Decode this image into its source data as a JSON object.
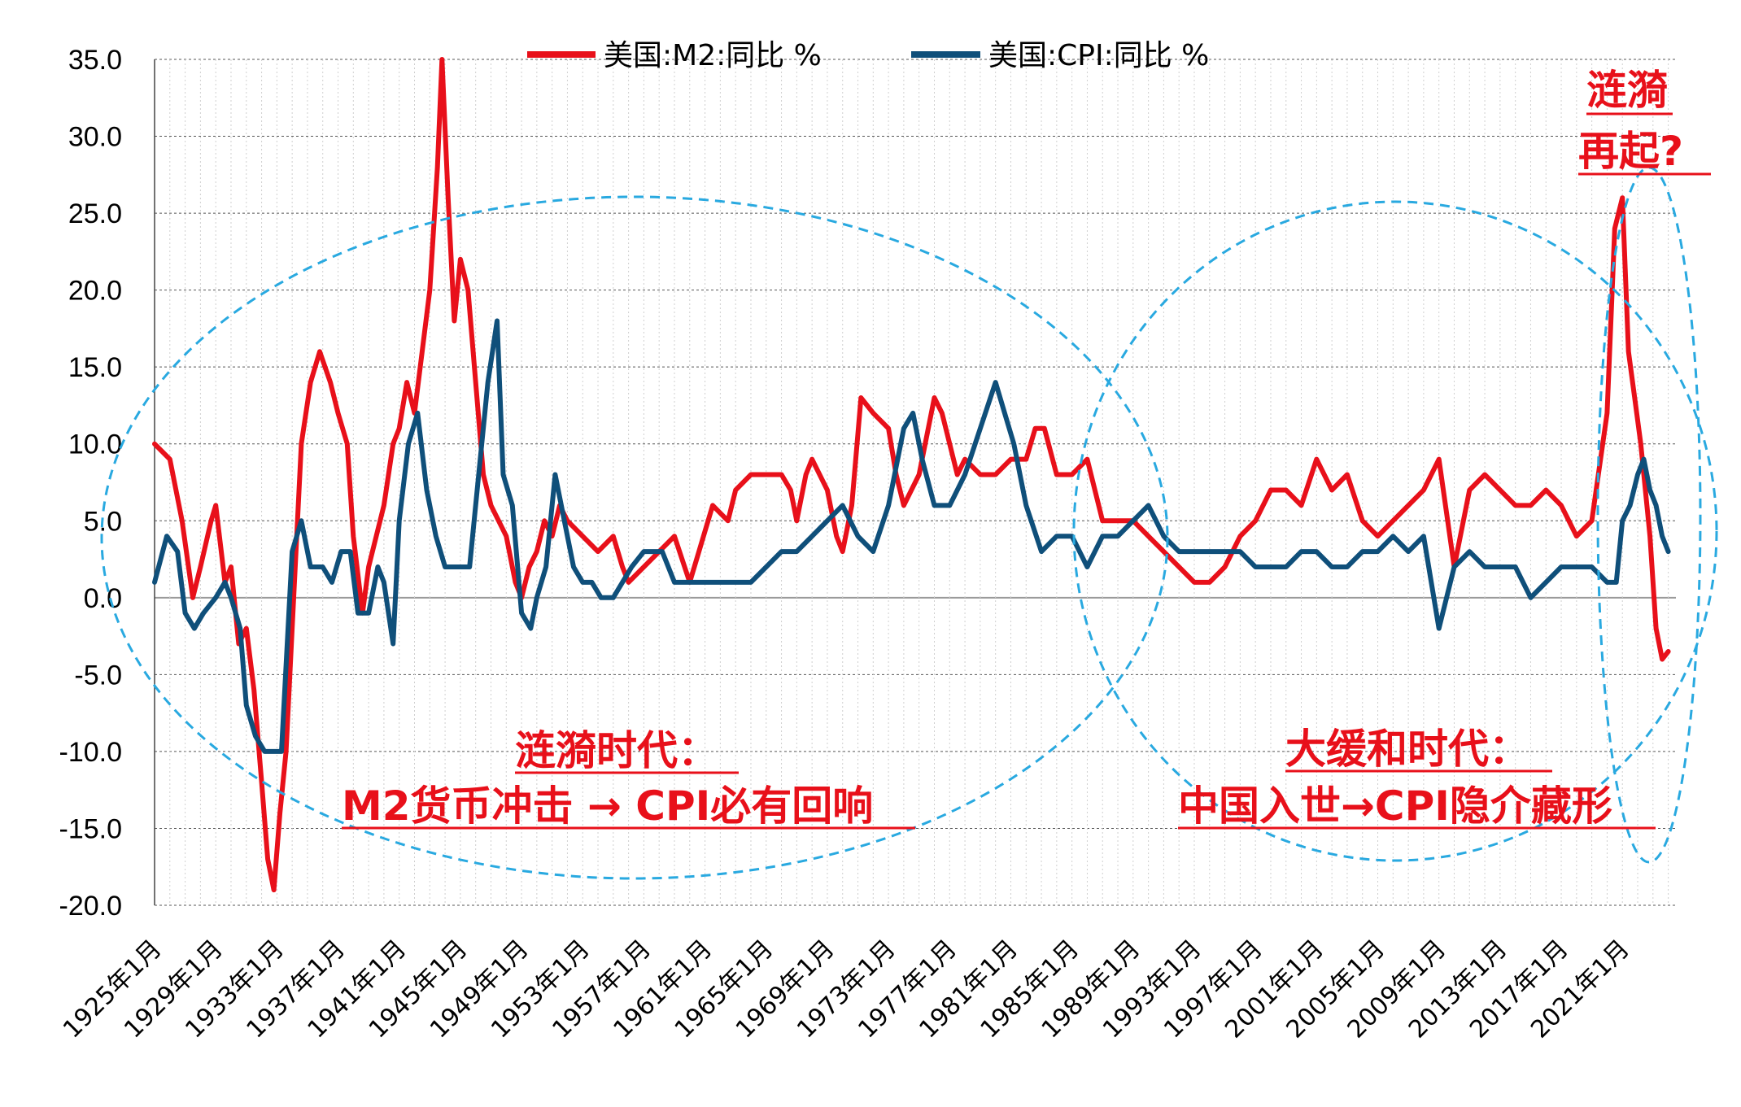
{
  "chart_data": {
    "type": "line",
    "title": "",
    "xlabel": "",
    "ylabel": "",
    "ylim": [
      -20,
      35
    ],
    "yticks": [
      "35.0",
      "30.0",
      "25.0",
      "20.0",
      "15.0",
      "10.0",
      "5.0",
      "0.0",
      "-5.0",
      "-10.0",
      "-15.0",
      "-20.0"
    ],
    "x_range": [
      1925,
      2024.5
    ],
    "xtick_labels": [
      "1925年1月",
      "1929年1月",
      "1933年1月",
      "1937年1月",
      "1941年1月",
      "1945年1月",
      "1949年1月",
      "1953年1月",
      "1957年1月",
      "1961年1月",
      "1965年1月",
      "1969年1月",
      "1973年1月",
      "1977年1月",
      "1981年1月",
      "1985年1月",
      "1989年1月",
      "1993年1月",
      "1997年1月",
      "2001年1月",
      "2005年1月",
      "2009年1月",
      "2013年1月",
      "2017年1月",
      "2021年1月"
    ],
    "grid": "vertical-dotted-and-horizontal-dotted",
    "legend_position": "top",
    "series": [
      {
        "name": "美国:M2:同比 %",
        "color": "#e8101a",
        "points": [
          [
            1925.0,
            10
          ],
          [
            1926.0,
            9
          ],
          [
            1926.8,
            5
          ],
          [
            1927.5,
            0
          ],
          [
            1928.0,
            2
          ],
          [
            1928.7,
            5
          ],
          [
            1929.0,
            6
          ],
          [
            1929.6,
            1
          ],
          [
            1930.0,
            2
          ],
          [
            1930.5,
            -3
          ],
          [
            1931.0,
            -2
          ],
          [
            1931.5,
            -6
          ],
          [
            1932.0,
            -12
          ],
          [
            1932.4,
            -17
          ],
          [
            1932.8,
            -19
          ],
          [
            1933.2,
            -14
          ],
          [
            1933.6,
            -10
          ],
          [
            1934.0,
            -2
          ],
          [
            1934.6,
            10
          ],
          [
            1935.2,
            14
          ],
          [
            1935.8,
            16
          ],
          [
            1936.5,
            14
          ],
          [
            1937.0,
            12
          ],
          [
            1937.6,
            10
          ],
          [
            1938.0,
            4
          ],
          [
            1938.6,
            -1
          ],
          [
            1939.0,
            2
          ],
          [
            1939.5,
            4
          ],
          [
            1940.0,
            6
          ],
          [
            1940.6,
            10
          ],
          [
            1941.0,
            11
          ],
          [
            1941.5,
            14
          ],
          [
            1942.0,
            12
          ],
          [
            1942.5,
            16
          ],
          [
            1943.0,
            20
          ],
          [
            1943.5,
            28
          ],
          [
            1943.8,
            35
          ],
          [
            1944.2,
            26
          ],
          [
            1944.6,
            18
          ],
          [
            1945.0,
            22
          ],
          [
            1945.5,
            20
          ],
          [
            1946.0,
            14
          ],
          [
            1946.5,
            8
          ],
          [
            1947.0,
            6
          ],
          [
            1948.0,
            4
          ],
          [
            1948.6,
            1
          ],
          [
            1949.0,
            0
          ],
          [
            1949.5,
            2
          ],
          [
            1950.0,
            3
          ],
          [
            1950.5,
            5
          ],
          [
            1951.0,
            4
          ],
          [
            1951.5,
            6
          ],
          [
            1952.0,
            5
          ],
          [
            1953.0,
            4
          ],
          [
            1954.0,
            3
          ],
          [
            1955.0,
            4
          ],
          [
            1955.6,
            2
          ],
          [
            1956.0,
            1
          ],
          [
            1957.0,
            2
          ],
          [
            1958.0,
            3
          ],
          [
            1959.0,
            4
          ],
          [
            1960.0,
            1
          ],
          [
            1960.6,
            3
          ],
          [
            1961.5,
            6
          ],
          [
            1962.5,
            5
          ],
          [
            1963.0,
            7
          ],
          [
            1964.0,
            8
          ],
          [
            1965.0,
            8
          ],
          [
            1966.0,
            8
          ],
          [
            1966.6,
            7
          ],
          [
            1967.0,
            5
          ],
          [
            1967.6,
            8
          ],
          [
            1968.0,
            9
          ],
          [
            1969.0,
            7
          ],
          [
            1969.6,
            4
          ],
          [
            1970.0,
            3
          ],
          [
            1970.6,
            6
          ],
          [
            1971.2,
            13
          ],
          [
            1972.0,
            12
          ],
          [
            1973.0,
            11
          ],
          [
            1973.5,
            8
          ],
          [
            1974.0,
            6
          ],
          [
            1975.0,
            8
          ],
          [
            1976.0,
            13
          ],
          [
            1976.5,
            12
          ],
          [
            1977.0,
            10
          ],
          [
            1977.5,
            8
          ],
          [
            1978.0,
            9
          ],
          [
            1979.0,
            8
          ],
          [
            1980.0,
            8
          ],
          [
            1981.0,
            9
          ],
          [
            1982.0,
            9
          ],
          [
            1982.6,
            11
          ],
          [
            1983.2,
            11
          ],
          [
            1984.0,
            8
          ],
          [
            1985.0,
            8
          ],
          [
            1986.0,
            9
          ],
          [
            1987.0,
            5
          ],
          [
            1988.0,
            5
          ],
          [
            1989.0,
            5
          ],
          [
            1990.0,
            4
          ],
          [
            1991.0,
            3
          ],
          [
            1992.0,
            2
          ],
          [
            1993.0,
            1
          ],
          [
            1994.0,
            1
          ],
          [
            1995.0,
            2
          ],
          [
            1996.0,
            4
          ],
          [
            1997.0,
            5
          ],
          [
            1998.0,
            7
          ],
          [
            1999.0,
            7
          ],
          [
            2000.0,
            6
          ],
          [
            2001.0,
            9
          ],
          [
            2002.0,
            7
          ],
          [
            2003.0,
            8
          ],
          [
            2004.0,
            5
          ],
          [
            2005.0,
            4
          ],
          [
            2006.0,
            5
          ],
          [
            2007.0,
            6
          ],
          [
            2008.0,
            7
          ],
          [
            2009.0,
            9
          ],
          [
            2010.0,
            2
          ],
          [
            2011.0,
            7
          ],
          [
            2012.0,
            8
          ],
          [
            2013.0,
            7
          ],
          [
            2014.0,
            6
          ],
          [
            2015.0,
            6
          ],
          [
            2016.0,
            7
          ],
          [
            2017.0,
            6
          ],
          [
            2018.0,
            4
          ],
          [
            2019.0,
            5
          ],
          [
            2020.0,
            12
          ],
          [
            2020.5,
            24
          ],
          [
            2021.0,
            26
          ],
          [
            2021.4,
            16
          ],
          [
            2021.8,
            13
          ],
          [
            2022.2,
            10
          ],
          [
            2022.8,
            4
          ],
          [
            2023.2,
            -2
          ],
          [
            2023.6,
            -4
          ],
          [
            2024.0,
            -3.5
          ]
        ]
      },
      {
        "name": "美国:CPI:同比 %",
        "color": "#0f4f7a",
        "points": [
          [
            1925.0,
            1
          ],
          [
            1925.8,
            4
          ],
          [
            1926.5,
            3
          ],
          [
            1927.0,
            -1
          ],
          [
            1927.6,
            -2
          ],
          [
            1928.2,
            -1
          ],
          [
            1929.0,
            0
          ],
          [
            1929.6,
            1
          ],
          [
            1930.0,
            0
          ],
          [
            1930.6,
            -2
          ],
          [
            1931.0,
            -7
          ],
          [
            1931.6,
            -9
          ],
          [
            1932.2,
            -10
          ],
          [
            1932.8,
            -10
          ],
          [
            1933.3,
            -10
          ],
          [
            1934.0,
            3
          ],
          [
            1934.6,
            5
          ],
          [
            1935.2,
            2
          ],
          [
            1936.0,
            2
          ],
          [
            1936.6,
            1
          ],
          [
            1937.2,
            3
          ],
          [
            1937.8,
            3
          ],
          [
            1938.3,
            -1
          ],
          [
            1939.0,
            -1
          ],
          [
            1939.6,
            2
          ],
          [
            1940.0,
            1
          ],
          [
            1940.6,
            -3
          ],
          [
            1941.0,
            5
          ],
          [
            1941.6,
            10
          ],
          [
            1942.2,
            12
          ],
          [
            1942.8,
            7
          ],
          [
            1943.4,
            4
          ],
          [
            1944.0,
            2
          ],
          [
            1944.6,
            2
          ],
          [
            1945.0,
            2
          ],
          [
            1945.6,
            2
          ],
          [
            1946.2,
            8
          ],
          [
            1946.8,
            14
          ],
          [
            1947.4,
            18
          ],
          [
            1947.8,
            8
          ],
          [
            1948.4,
            6
          ],
          [
            1949.0,
            -1
          ],
          [
            1949.6,
            -2
          ],
          [
            1950.0,
            0
          ],
          [
            1950.6,
            2
          ],
          [
            1951.2,
            8
          ],
          [
            1951.8,
            5
          ],
          [
            1952.4,
            2
          ],
          [
            1953.0,
            1
          ],
          [
            1953.6,
            1
          ],
          [
            1954.2,
            0
          ],
          [
            1955.0,
            0
          ],
          [
            1955.6,
            1
          ],
          [
            1956.2,
            2
          ],
          [
            1957.0,
            3
          ],
          [
            1957.6,
            3
          ],
          [
            1958.2,
            3
          ],
          [
            1959.0,
            1
          ],
          [
            1959.6,
            1
          ],
          [
            1960.0,
            1
          ],
          [
            1961.0,
            1
          ],
          [
            1962.0,
            1
          ],
          [
            1963.0,
            1
          ],
          [
            1964.0,
            1
          ],
          [
            1965.0,
            2
          ],
          [
            1966.0,
            3
          ],
          [
            1967.0,
            3
          ],
          [
            1968.0,
            4
          ],
          [
            1969.0,
            5
          ],
          [
            1970.0,
            6
          ],
          [
            1971.0,
            4
          ],
          [
            1972.0,
            3
          ],
          [
            1973.0,
            6
          ],
          [
            1974.0,
            11
          ],
          [
            1974.6,
            12
          ],
          [
            1975.2,
            9
          ],
          [
            1976.0,
            6
          ],
          [
            1977.0,
            6
          ],
          [
            1978.0,
            8
          ],
          [
            1979.0,
            11
          ],
          [
            1980.0,
            14
          ],
          [
            1980.6,
            12
          ],
          [
            1981.2,
            10
          ],
          [
            1982.0,
            6
          ],
          [
            1983.0,
            3
          ],
          [
            1984.0,
            4
          ],
          [
            1985.0,
            4
          ],
          [
            1986.0,
            2
          ],
          [
            1987.0,
            4
          ],
          [
            1988.0,
            4
          ],
          [
            1989.0,
            5
          ],
          [
            1990.0,
            6
          ],
          [
            1991.0,
            4
          ],
          [
            1992.0,
            3
          ],
          [
            1993.0,
            3
          ],
          [
            1994.0,
            3
          ],
          [
            1995.0,
            3
          ],
          [
            1996.0,
            3
          ],
          [
            1997.0,
            2
          ],
          [
            1998.0,
            2
          ],
          [
            1999.0,
            2
          ],
          [
            2000.0,
            3
          ],
          [
            2001.0,
            3
          ],
          [
            2002.0,
            2
          ],
          [
            2003.0,
            2
          ],
          [
            2004.0,
            3
          ],
          [
            2005.0,
            3
          ],
          [
            2006.0,
            4
          ],
          [
            2007.0,
            3
          ],
          [
            2008.0,
            4
          ],
          [
            2009.0,
            -2
          ],
          [
            2010.0,
            2
          ],
          [
            2011.0,
            3
          ],
          [
            2012.0,
            2
          ],
          [
            2013.0,
            2
          ],
          [
            2014.0,
            2
          ],
          [
            2015.0,
            0
          ],
          [
            2016.0,
            1
          ],
          [
            2017.0,
            2
          ],
          [
            2018.0,
            2
          ],
          [
            2019.0,
            2
          ],
          [
            2020.0,
            1
          ],
          [
            2020.6,
            1
          ],
          [
            2021.0,
            5
          ],
          [
            2021.5,
            6
          ],
          [
            2022.0,
            8
          ],
          [
            2022.4,
            9
          ],
          [
            2022.8,
            7
          ],
          [
            2023.2,
            6
          ],
          [
            2023.6,
            4
          ],
          [
            2024.0,
            3
          ]
        ]
      }
    ]
  },
  "annotations": {
    "era1_title": "涟漪时代：",
    "era1_sub": "M2货币冲击 → CPI必有回响",
    "era2_title": "大缓和时代：",
    "era2_sub": "中国入世→CPI隐介藏形",
    "era3_line1": "涟漪",
    "era3_line2": "再起?"
  },
  "colors": {
    "m2": "#e8101a",
    "cpi": "#0f4f7a",
    "ellipse": "#29a9e0",
    "annotation": "#e8101a"
  }
}
